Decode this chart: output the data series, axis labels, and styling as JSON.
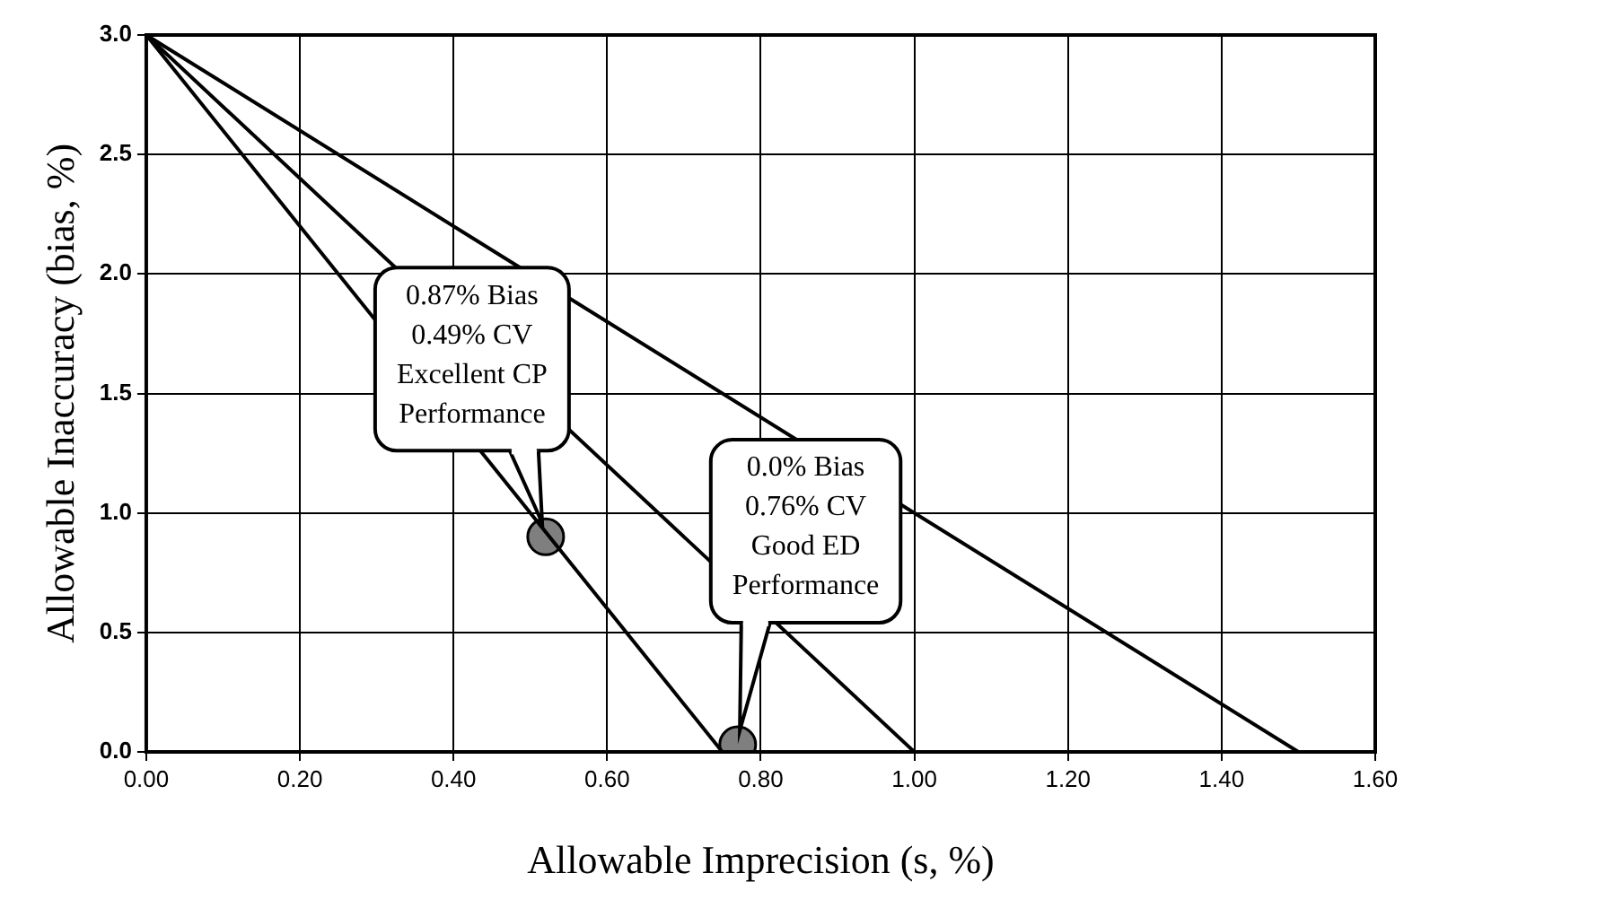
{
  "chart_data": {
    "type": "line",
    "xlabel": "Allowable Imprecision (s, %)",
    "ylabel": "Allowable Inaccuracy (bias, %)",
    "series": [
      {
        "x": [
          0,
          0.75
        ],
        "values": [
          3,
          0
        ],
        "color": "#000000",
        "marker": "none"
      },
      {
        "x": [
          0,
          1.0
        ],
        "values": [
          3,
          0
        ],
        "color": "#000000",
        "marker": "none"
      },
      {
        "x": [
          0,
          1.5
        ],
        "values": [
          3,
          0
        ],
        "color": "#000000",
        "marker": "none"
      },
      {
        "type": "scatter",
        "x": [
          0.52,
          0.77
        ],
        "values": [
          0.9,
          0.03
        ],
        "color": "#7f7f7f",
        "marker": "circle"
      }
    ],
    "xlim": [
      0,
      1.6
    ],
    "ylim": [
      0,
      3
    ],
    "xticks": [
      {
        "value": 0,
        "label": "0.00"
      },
      {
        "value": 0.2,
        "label": "0.20"
      },
      {
        "value": 0.4,
        "label": "0.40"
      },
      {
        "value": 0.6,
        "label": "0.60"
      },
      {
        "value": 0.8,
        "label": "0.80"
      },
      {
        "value": 1.0,
        "label": "1.00"
      },
      {
        "value": 1.2,
        "label": "1.20"
      },
      {
        "value": 1.4,
        "label": "1.40"
      },
      {
        "value": 1.6,
        "label": "1.60"
      }
    ],
    "yticks": [
      {
        "value": 0,
        "label": "0.0"
      },
      {
        "value": 0.5,
        "label": "0.5"
      },
      {
        "value": 1.0,
        "label": "1.0"
      },
      {
        "value": 1.5,
        "label": "1.5"
      },
      {
        "value": 2.0,
        "label": "2.0"
      },
      {
        "value": 2.5,
        "label": "2.5"
      },
      {
        "value": 3.0,
        "label": "3.0"
      }
    ],
    "grid": true,
    "legend": false,
    "annotations": [
      {
        "text": "0.87% Bias\n0.49% CV\nExcellent CP\nPerformance",
        "x": 0.52,
        "y": 0.9
      },
      {
        "text": "0.0% Bias\n0.76% CV\nGood ED\nPerformance",
        "x": 0.77,
        "y": 0.03
      }
    ]
  }
}
